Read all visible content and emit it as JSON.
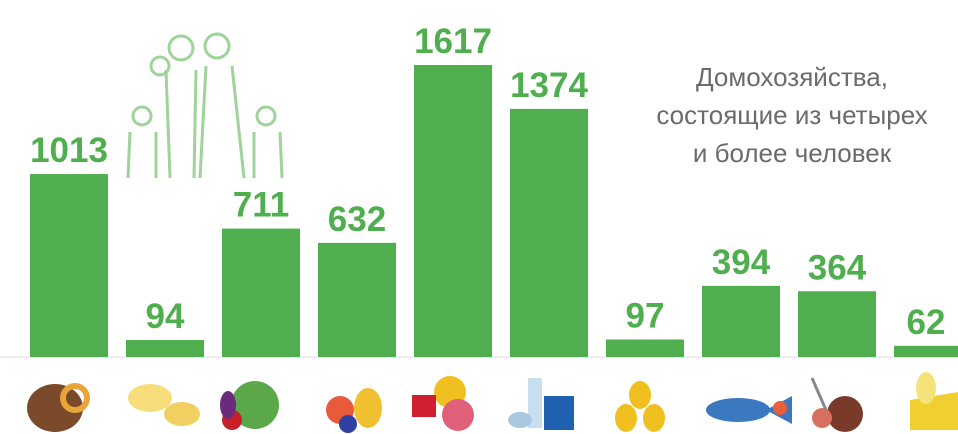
{
  "chart_data": {
    "type": "bar",
    "title": [
      "Домохозяйства,",
      "состоящие из четырех",
      "и более человек"
    ],
    "categories": [
      null,
      null,
      null,
      null,
      null,
      null,
      null,
      null,
      null,
      null
    ],
    "values": [
      1013,
      94,
      711,
      632,
      1617,
      1374,
      97,
      394,
      364,
      62
    ],
    "color": "#4fae4e",
    "label_color": "#4fae4e"
  }
}
